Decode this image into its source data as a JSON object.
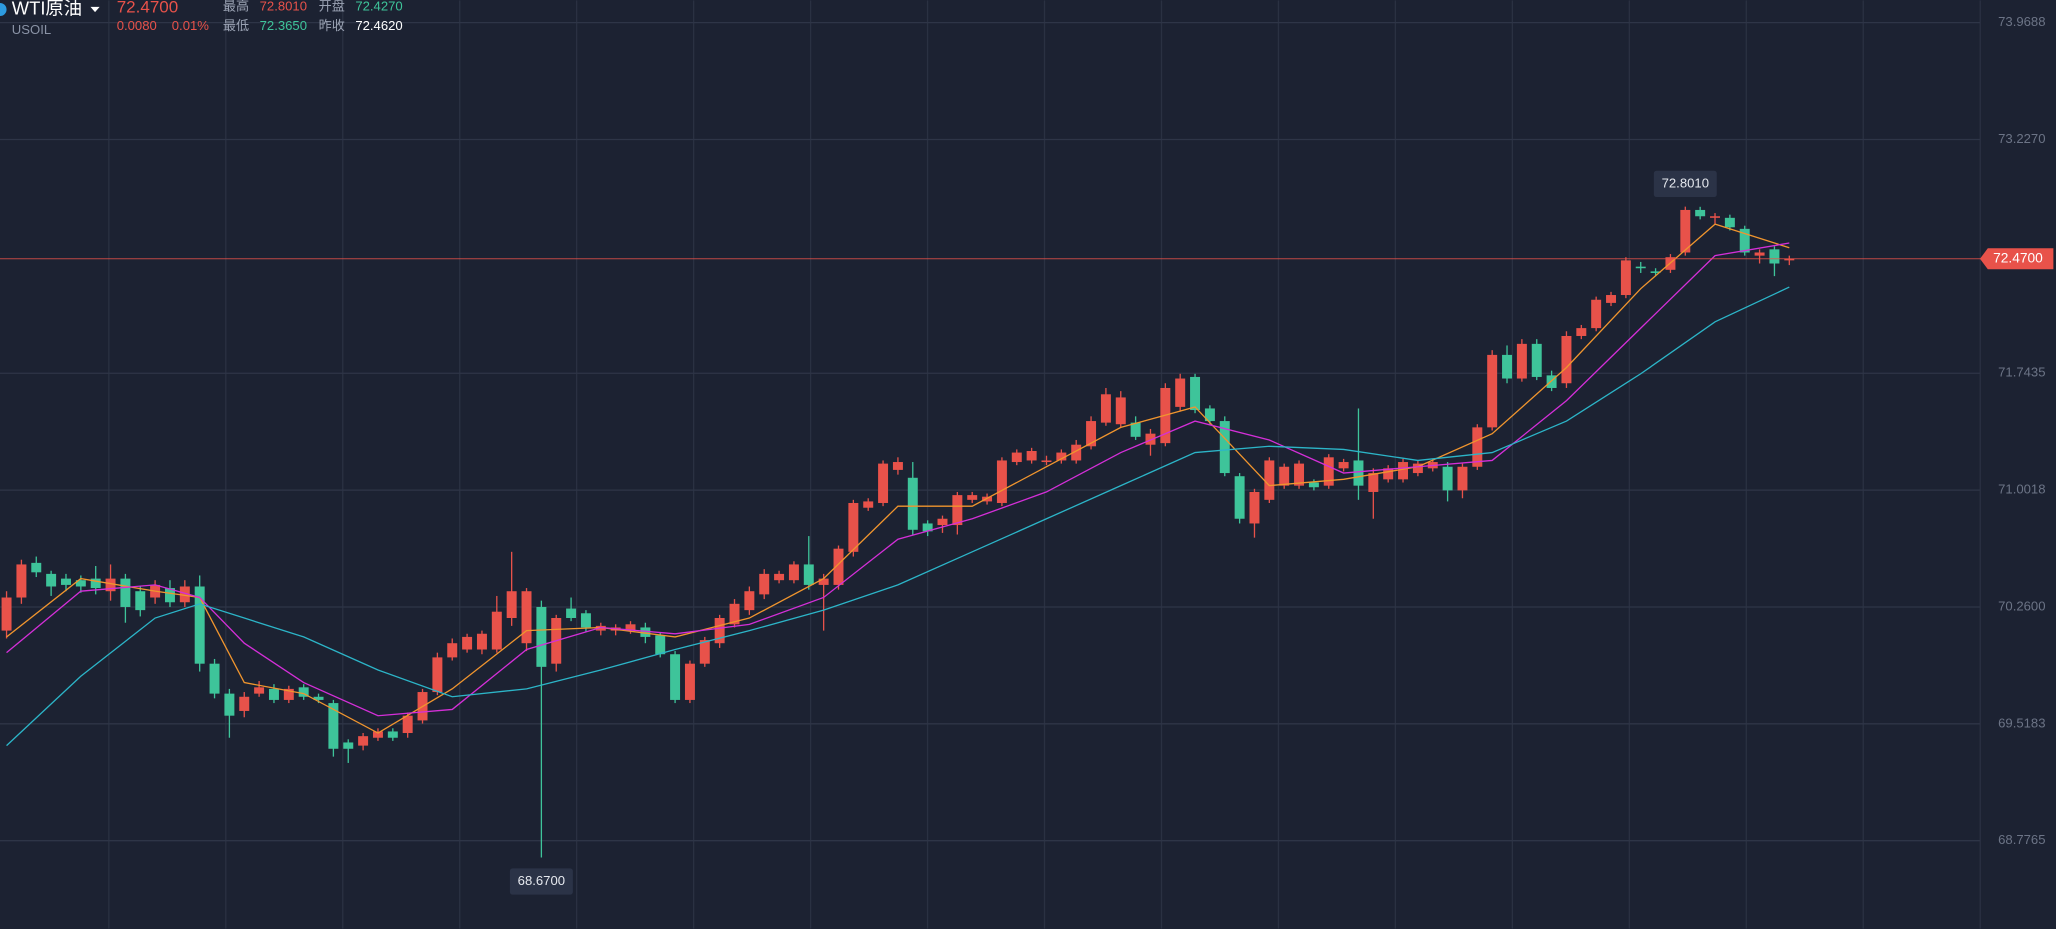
{
  "chart_data": {
    "type": "candlestick",
    "symbol": "WTI原油",
    "code": "USOIL",
    "last": {
      "value": 72.47,
      "label": "72.4700"
    },
    "change": "0.0080",
    "change_pct": "0.01%",
    "stats": [
      {
        "label": "最高",
        "value": "72.8010",
        "color": "#e8524a"
      },
      {
        "label": "开盘",
        "value": "72.4270",
        "color": "#3ec49a"
      },
      {
        "label": "最低",
        "value": "72.3650",
        "color": "#3ec49a"
      },
      {
        "label": "昨收",
        "value": "72.4620",
        "color": "#ffffff"
      }
    ],
    "annotations": [
      "72.8010",
      "68.6700"
    ],
    "up_color": "#e8524a",
    "down_color": "#3ec49a",
    "ylim": [
      68.2181,
      74.1105
    ],
    "yticks": [
      73.9688,
      {
        "value": 73.227,
        "label": "73.2270"
      },
      71.7435,
      71.0018,
      {
        "value": 70.26,
        "label": "70.2600"
      },
      69.5183,
      68.7765
    ],
    "grid": true,
    "candles": [
      [
        70.11,
        70.36,
        70.06,
        70.32
      ],
      [
        70.32,
        70.56,
        70.28,
        70.53
      ],
      [
        70.54,
        70.58,
        70.45,
        70.48
      ],
      [
        70.47,
        70.49,
        70.33,
        70.39
      ],
      [
        70.44,
        70.47,
        70.36,
        70.4
      ],
      [
        70.43,
        70.46,
        70.35,
        70.39
      ],
      [
        70.44,
        70.52,
        70.34,
        70.38
      ],
      [
        70.36,
        70.53,
        70.3,
        70.44
      ],
      [
        70.44,
        70.47,
        70.16,
        70.26
      ],
      [
        70.36,
        70.39,
        70.2,
        70.24
      ],
      [
        70.32,
        70.43,
        70.28,
        70.4
      ],
      [
        70.38,
        70.43,
        70.26,
        70.29
      ],
      [
        70.29,
        70.43,
        70.26,
        70.39
      ],
      [
        70.39,
        70.46,
        69.85,
        69.9
      ],
      [
        69.9,
        69.93,
        69.68,
        69.71
      ],
      [
        69.71,
        69.74,
        69.43,
        69.57
      ],
      [
        69.6,
        69.72,
        69.56,
        69.69
      ],
      [
        69.71,
        69.79,
        69.69,
        69.75
      ],
      [
        69.74,
        69.77,
        69.65,
        69.67
      ],
      [
        69.67,
        69.76,
        69.65,
        69.74
      ],
      [
        69.75,
        69.77,
        69.67,
        69.69
      ],
      [
        69.69,
        69.71,
        69.65,
        69.67
      ],
      [
        69.65,
        69.67,
        69.31,
        69.36
      ],
      [
        69.4,
        69.42,
        69.27,
        69.36
      ],
      [
        69.38,
        69.46,
        69.35,
        69.44
      ],
      [
        69.43,
        69.49,
        69.41,
        69.47
      ],
      [
        69.47,
        69.49,
        69.41,
        69.43
      ],
      [
        69.46,
        69.59,
        69.43,
        69.57
      ],
      [
        69.54,
        69.74,
        69.52,
        69.72
      ],
      [
        69.72,
        69.97,
        69.7,
        69.94
      ],
      [
        69.94,
        70.06,
        69.92,
        70.03
      ],
      [
        69.99,
        70.09,
        69.97,
        70.07
      ],
      [
        69.99,
        70.11,
        69.96,
        70.09
      ],
      [
        69.99,
        70.33,
        69.97,
        70.23
      ],
      [
        70.19,
        70.61,
        70.14,
        70.36
      ],
      [
        70.03,
        70.38,
        69.98,
        70.36
      ],
      [
        70.26,
        70.3,
        68.67,
        69.88
      ],
      [
        69.9,
        70.21,
        69.85,
        70.19
      ],
      [
        70.25,
        70.32,
        70.17,
        70.19
      ],
      [
        70.22,
        70.24,
        70.1,
        70.13
      ],
      [
        70.11,
        70.16,
        70.08,
        70.14
      ],
      [
        70.11,
        70.15,
        70.08,
        70.13
      ],
      [
        70.11,
        70.17,
        70.09,
        70.15
      ],
      [
        70.13,
        70.16,
        70.03,
        70.07
      ],
      [
        70.08,
        70.1,
        69.94,
        69.96
      ],
      [
        69.96,
        69.98,
        69.65,
        69.67
      ],
      [
        69.67,
        69.92,
        69.65,
        69.9
      ],
      [
        69.9,
        70.07,
        69.88,
        70.05
      ],
      [
        70.03,
        70.21,
        70.0,
        70.19
      ],
      [
        70.15,
        70.31,
        70.13,
        70.28
      ],
      [
        70.24,
        70.39,
        70.21,
        70.36
      ],
      [
        70.34,
        70.5,
        70.31,
        70.47
      ],
      [
        70.43,
        70.49,
        70.41,
        70.47
      ],
      [
        70.43,
        70.55,
        70.41,
        70.53
      ],
      [
        70.53,
        70.71,
        70.37,
        70.4
      ],
      [
        70.4,
        70.47,
        70.11,
        70.44
      ],
      [
        70.4,
        70.65,
        70.37,
        70.63
      ],
      [
        70.61,
        70.94,
        70.58,
        70.92
      ],
      [
        70.89,
        70.95,
        70.87,
        70.93
      ],
      [
        70.92,
        71.19,
        70.9,
        71.17
      ],
      [
        71.13,
        71.21,
        71.1,
        71.18
      ],
      [
        71.08,
        71.18,
        70.72,
        70.75
      ],
      [
        70.79,
        70.81,
        70.71,
        70.74
      ],
      [
        70.78,
        70.84,
        70.73,
        70.82
      ],
      [
        70.78,
        70.99,
        70.72,
        70.97
      ],
      [
        70.94,
        70.99,
        70.92,
        70.97
      ],
      [
        70.93,
        70.98,
        70.91,
        70.96
      ],
      [
        70.92,
        71.21,
        70.9,
        71.19
      ],
      [
        71.18,
        71.26,
        71.16,
        71.24
      ],
      [
        71.19,
        71.27,
        71.17,
        71.25
      ],
      [
        71.18,
        71.22,
        71.16,
        71.19
      ],
      [
        71.19,
        71.26,
        71.17,
        71.24
      ],
      [
        71.19,
        71.32,
        71.17,
        71.29
      ],
      [
        71.28,
        71.47,
        71.26,
        71.44
      ],
      [
        71.43,
        71.65,
        71.41,
        71.61
      ],
      [
        71.42,
        71.63,
        71.4,
        71.59
      ],
      [
        71.43,
        71.47,
        71.32,
        71.34
      ],
      [
        71.29,
        71.39,
        71.22,
        71.36
      ],
      [
        71.3,
        71.68,
        71.28,
        71.65
      ],
      [
        71.53,
        71.74,
        71.5,
        71.71
      ],
      [
        71.72,
        71.74,
        71.49,
        71.51
      ],
      [
        71.52,
        71.54,
        71.42,
        71.44
      ],
      [
        71.44,
        71.47,
        71.09,
        71.11
      ],
      [
        71.09,
        71.11,
        70.79,
        70.82
      ],
      [
        70.79,
        71.01,
        70.7,
        70.99
      ],
      [
        70.94,
        71.21,
        70.92,
        71.19
      ],
      [
        71.03,
        71.17,
        71.01,
        71.15
      ],
      [
        71.03,
        71.19,
        71.01,
        71.17
      ],
      [
        71.05,
        71.07,
        71.0,
        71.02
      ],
      [
        71.03,
        71.23,
        71.01,
        71.21
      ],
      [
        71.14,
        71.2,
        71.12,
        71.18
      ],
      [
        71.19,
        71.52,
        70.94,
        71.03
      ],
      [
        70.99,
        71.14,
        70.82,
        71.11
      ],
      [
        71.07,
        71.16,
        71.05,
        71.14
      ],
      [
        71.07,
        71.2,
        71.05,
        71.18
      ],
      [
        71.11,
        71.19,
        71.09,
        71.17
      ],
      [
        71.14,
        71.2,
        71.12,
        71.18
      ],
      [
        71.15,
        71.18,
        70.93,
        71.0
      ],
      [
        71.0,
        71.17,
        70.95,
        71.15
      ],
      [
        71.15,
        71.42,
        71.13,
        71.4
      ],
      [
        71.4,
        71.89,
        71.38,
        71.86
      ],
      [
        71.86,
        71.92,
        71.68,
        71.71
      ],
      [
        71.71,
        71.96,
        71.69,
        71.93
      ],
      [
        71.93,
        71.96,
        71.7,
        71.72
      ],
      [
        71.73,
        71.76,
        71.63,
        71.65
      ],
      [
        71.68,
        72.01,
        71.65,
        71.98
      ],
      [
        71.98,
        72.05,
        71.96,
        72.03
      ],
      [
        72.03,
        72.23,
        72.01,
        72.21
      ],
      [
        72.19,
        72.26,
        72.17,
        72.24
      ],
      [
        72.24,
        72.48,
        72.22,
        72.46
      ],
      [
        72.42,
        72.45,
        72.38,
        72.41
      ],
      [
        72.39,
        72.41,
        72.36,
        72.38
      ],
      [
        72.4,
        72.5,
        72.38,
        72.48
      ],
      [
        72.51,
        72.801,
        72.49,
        72.78
      ],
      [
        72.78,
        72.8,
        72.72,
        72.74
      ],
      [
        72.73,
        72.76,
        72.69,
        72.74
      ],
      [
        72.73,
        72.75,
        72.65,
        72.67
      ],
      [
        72.66,
        72.68,
        72.49,
        72.51
      ],
      [
        72.49,
        72.53,
        72.44,
        72.51
      ],
      [
        72.53,
        72.55,
        72.36,
        72.44
      ],
      [
        72.46,
        72.49,
        72.43,
        72.47
      ]
    ],
    "series": [
      {
        "color": "#f0952e",
        "x": [
          0,
          5,
          10,
          13,
          16,
          20,
          25,
          30,
          35,
          40,
          45,
          50,
          55,
          60,
          65,
          70,
          75,
          80,
          85,
          90,
          95,
          100,
          105,
          110,
          115,
          120
        ],
        "values": [
          70.07,
          70.44,
          70.36,
          70.32,
          69.78,
          69.71,
          69.46,
          69.74,
          70.11,
          70.13,
          70.07,
          70.19,
          70.44,
          70.9,
          70.9,
          71.15,
          71.4,
          71.53,
          71.03,
          71.07,
          71.15,
          71.36,
          71.78,
          72.28,
          72.69,
          72.54
        ]
      },
      {
        "color": "#d42fd8",
        "x": [
          0,
          5,
          10,
          13,
          16,
          20,
          25,
          30,
          35,
          40,
          45,
          50,
          55,
          60,
          65,
          70,
          75,
          80,
          85,
          90,
          95,
          100,
          105,
          110,
          115,
          120
        ],
        "values": [
          69.97,
          70.36,
          70.4,
          70.32,
          70.03,
          69.78,
          69.57,
          69.61,
          69.99,
          70.13,
          70.09,
          70.15,
          70.32,
          70.69,
          70.82,
          70.99,
          71.24,
          71.44,
          71.32,
          71.11,
          71.15,
          71.19,
          71.57,
          72.03,
          72.49,
          72.57
        ]
      },
      {
        "color": "#2cb5c8",
        "x": [
          0,
          5,
          10,
          13,
          16,
          20,
          25,
          30,
          35,
          40,
          45,
          50,
          55,
          60,
          65,
          70,
          75,
          80,
          85,
          90,
          95,
          100,
          105,
          110,
          115,
          120
        ],
        "values": [
          69.38,
          69.82,
          70.19,
          70.28,
          70.19,
          70.07,
          69.86,
          69.69,
          69.74,
          69.86,
          69.99,
          70.11,
          70.24,
          70.4,
          70.61,
          70.82,
          71.03,
          71.24,
          71.28,
          71.26,
          71.19,
          71.24,
          71.44,
          71.74,
          72.07,
          72.29
        ]
      }
    ]
  }
}
